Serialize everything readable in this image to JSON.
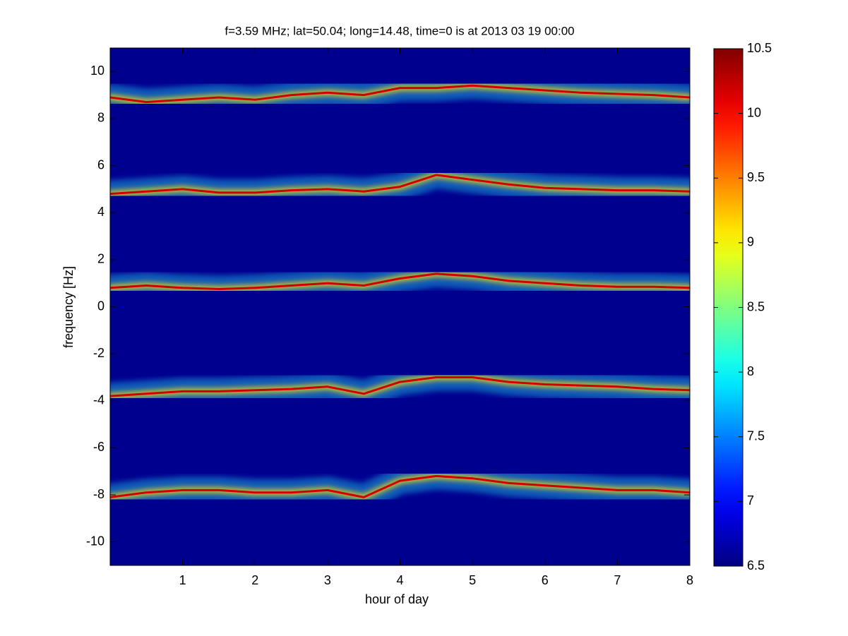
{
  "chart_data": {
    "type": "spectrogram",
    "title": "f=3.59 MHz;  lat=50.04; long=14.48, time=0 is at 2013 03 19 00:00",
    "xlabel": "hour of day",
    "ylabel": "frequency [Hz]",
    "xlim": [
      0,
      8
    ],
    "ylim": [
      -11,
      11
    ],
    "xticks": [
      1,
      2,
      3,
      4,
      5,
      6,
      7,
      8
    ],
    "yticks": [
      -10,
      -8,
      -6,
      -4,
      -2,
      0,
      2,
      4,
      6,
      8,
      10
    ],
    "background": "#00008f",
    "halo_color": "#20c8e8",
    "colormap": "jet",
    "clim": [
      6.5,
      10.5
    ],
    "cticks": [
      6.5,
      7,
      7.5,
      8,
      8.5,
      9,
      9.5,
      10,
      10.5
    ],
    "x": [
      0,
      0.5,
      1,
      1.5,
      2,
      2.5,
      3,
      3.5,
      4,
      4.5,
      5,
      5.5,
      6,
      6.5,
      7,
      7.5,
      8
    ],
    "series": [
      {
        "color": "#d00000",
        "values": [
          8.9,
          8.7,
          8.8,
          8.9,
          8.8,
          9.0,
          9.1,
          9.0,
          9.3,
          9.3,
          9.4,
          9.3,
          9.2,
          9.1,
          9.05,
          9.0,
          8.9
        ]
      },
      {
        "color": "#d00000",
        "values": [
          4.8,
          4.9,
          5.0,
          4.85,
          4.85,
          4.95,
          5.0,
          4.9,
          5.1,
          5.6,
          5.4,
          5.2,
          5.05,
          5.0,
          4.95,
          4.95,
          4.9
        ]
      },
      {
        "color": "#d00000",
        "values": [
          0.8,
          0.9,
          0.8,
          0.75,
          0.8,
          0.9,
          1.0,
          0.9,
          1.2,
          1.4,
          1.3,
          1.1,
          1.0,
          0.9,
          0.85,
          0.85,
          0.8
        ]
      },
      {
        "color": "#d00000",
        "values": [
          -3.8,
          -3.7,
          -3.6,
          -3.6,
          -3.55,
          -3.5,
          -3.4,
          -3.7,
          -3.2,
          -3.0,
          -3.0,
          -3.2,
          -3.3,
          -3.35,
          -3.4,
          -3.5,
          -3.55
        ]
      },
      {
        "color": "#d00000",
        "values": [
          -8.1,
          -7.9,
          -7.8,
          -7.8,
          -7.9,
          -7.9,
          -7.8,
          -8.1,
          -7.4,
          -7.2,
          -7.3,
          -7.5,
          -7.6,
          -7.7,
          -7.8,
          -7.8,
          -7.9
        ]
      }
    ]
  }
}
